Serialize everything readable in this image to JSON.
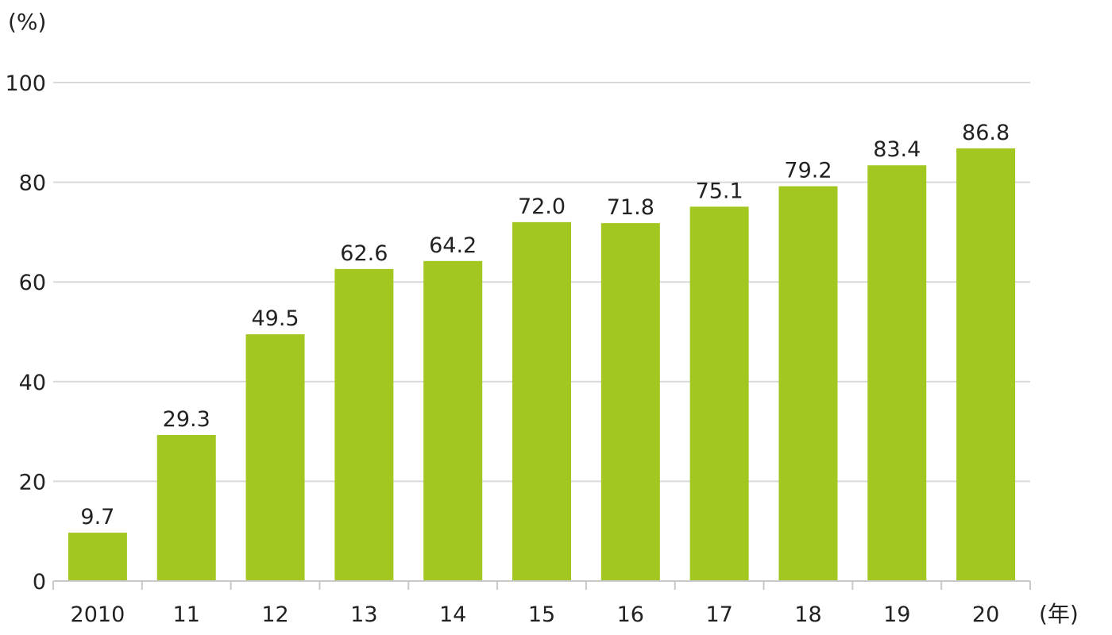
{
  "chart_data": {
    "type": "bar",
    "categories": [
      "2010",
      "11",
      "12",
      "13",
      "14",
      "15",
      "16",
      "17",
      "18",
      "19",
      "20"
    ],
    "values": [
      9.7,
      29.3,
      49.5,
      62.6,
      64.2,
      72.0,
      71.8,
      75.1,
      79.2,
      83.4,
      86.8
    ],
    "value_labels": [
      "9.7",
      "29.3",
      "49.5",
      "62.6",
      "64.2",
      "72.0",
      "71.8",
      "75.1",
      "79.2",
      "83.4",
      "86.8"
    ],
    "y_unit": "(%)",
    "x_unit": "(年)",
    "ylim": [
      0,
      100
    ],
    "yticks": [
      0,
      20,
      40,
      60,
      80,
      100
    ],
    "grid": true,
    "bar_color": "#a2c720"
  }
}
